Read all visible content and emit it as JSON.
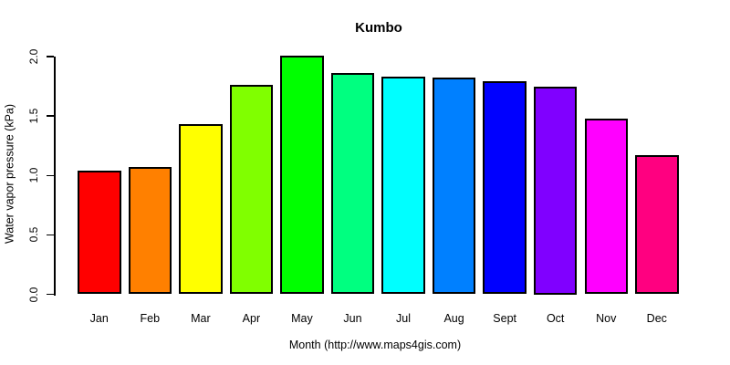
{
  "chart_data": {
    "type": "bar",
    "title": "Kumbo",
    "xlabel": "Month (http://www.maps4gis.com)",
    "ylabel": "Water vapor pressure (kPa)",
    "categories": [
      "Jan",
      "Feb",
      "Mar",
      "Apr",
      "May",
      "Jun",
      "Jul",
      "Aug",
      "Sept",
      "Oct",
      "Nov",
      "Dec"
    ],
    "values": [
      1.04,
      1.07,
      1.43,
      1.76,
      2.01,
      1.86,
      1.83,
      1.82,
      1.79,
      1.75,
      1.48,
      1.17
    ],
    "bar_colors": [
      "#FF0000",
      "#FF8000",
      "#FFFF00",
      "#80FF00",
      "#00FF00",
      "#00FF80",
      "#00FFFF",
      "#0080FF",
      "#0000FF",
      "#8000FF",
      "#FF00FF",
      "#FF0080"
    ],
    "bar_border_color": "#000000",
    "ylim": [
      0.0,
      2.0
    ],
    "ytick_labels": [
      "0.0",
      "0.5",
      "1.0",
      "1.5",
      "2.0"
    ],
    "grid": false,
    "legend": false,
    "axis_color": "#000000",
    "background_color": "#FFFFFF"
  }
}
